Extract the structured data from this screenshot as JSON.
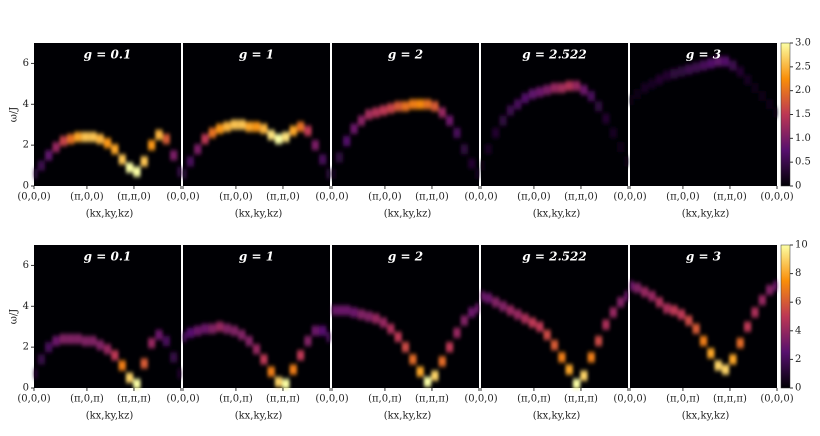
{
  "chart_data": [
    {
      "type": "spectral-heatmap",
      "ylabel": "ω/J",
      "xlabel": "(kx,ky,kz)",
      "k": [
        0,
        0.05,
        0.1,
        0.15,
        0.2,
        0.25,
        0.3,
        0.35,
        0.4,
        0.45,
        0.5,
        0.55,
        0.6,
        0.65,
        0.7,
        0.75,
        0.8,
        0.85,
        0.9,
        0.95,
        1
      ],
      "xlim": [
        0,
        1
      ],
      "xticks": [
        {
          "value": 0,
          "label": "(0,0,0)"
        },
        {
          "value": 0.36,
          "label": "(π,0,0)"
        },
        {
          "value": 0.68,
          "label": "(π,π,0)"
        },
        {
          "value": 1,
          "label": "(0,0,0)"
        }
      ],
      "ylim": [
        0,
        7
      ],
      "yticks": [
        0,
        2,
        4,
        6
      ],
      "colorbar": {
        "lim": [
          0,
          3
        ],
        "ticks": [
          0,
          0.5,
          {
            "value": 1,
            "label": "1.0"
          },
          1.5,
          {
            "value": 2,
            "label": "2.0"
          },
          2.5,
          {
            "value": 3,
            "label": "3.0"
          }
        ]
      },
      "panels": [
        {
          "title": "g = 0.1",
          "omega": [
            0.6,
            1.0,
            1.5,
            1.9,
            2.2,
            2.3,
            2.4,
            2.4,
            2.4,
            2.3,
            2.1,
            1.8,
            1.3,
            0.9,
            0.7,
            1.2,
            2.0,
            2.5,
            2.3,
            1.5,
            0.7
          ],
          "intensity": [
            0.4,
            0.5,
            0.8,
            1.2,
            1.6,
            2.0,
            2.4,
            2.6,
            2.6,
            2.5,
            2.3,
            2.4,
            2.6,
            3.0,
            3.0,
            2.6,
            2.3,
            2.5,
            1.8,
            1.0,
            0.5
          ]
        },
        {
          "title": "g = 1",
          "omega": [
            0.6,
            1.2,
            1.8,
            2.3,
            2.6,
            2.8,
            2.9,
            3.0,
            3.0,
            2.9,
            2.9,
            2.8,
            2.5,
            2.3,
            2.4,
            2.7,
            2.9,
            2.7,
            2.0,
            1.3,
            0.6
          ],
          "intensity": [
            0.4,
            0.6,
            1.0,
            1.5,
            2.0,
            2.3,
            2.5,
            2.6,
            2.6,
            2.4,
            2.3,
            2.5,
            2.8,
            3.0,
            2.8,
            2.4,
            2.0,
            1.5,
            1.0,
            0.6,
            0.4
          ]
        },
        {
          "title": "g = 2",
          "omega": [
            0.6,
            1.4,
            2.2,
            2.8,
            3.2,
            3.5,
            3.6,
            3.7,
            3.8,
            3.9,
            3.9,
            4.0,
            4.0,
            4.0,
            3.9,
            3.6,
            3.2,
            2.6,
            1.8,
            1.1,
            0.6
          ],
          "intensity": [
            0.2,
            0.4,
            0.7,
            0.9,
            1.1,
            1.3,
            1.4,
            1.5,
            1.6,
            1.8,
            2.0,
            2.1,
            2.2,
            2.0,
            1.8,
            1.2,
            0.9,
            0.6,
            0.4,
            0.3,
            0.2
          ]
        },
        {
          "title": "g = 2.522",
          "omega": [
            1.0,
            1.8,
            2.6,
            3.2,
            3.7,
            4.0,
            4.3,
            4.5,
            4.6,
            4.7,
            4.8,
            4.8,
            4.9,
            4.9,
            4.7,
            4.4,
            3.9,
            3.3,
            2.6,
            1.9,
            1.2
          ],
          "intensity": [
            0.1,
            0.2,
            0.3,
            0.4,
            0.5,
            0.6,
            0.7,
            0.8,
            0.9,
            1.0,
            1.2,
            1.3,
            1.4,
            1.2,
            0.9,
            0.6,
            0.4,
            0.3,
            0.2,
            0.1,
            0.1
          ]
        },
        {
          "title": "g = 3",
          "omega": [
            4.2,
            4.5,
            4.8,
            5.0,
            5.2,
            5.4,
            5.5,
            5.6,
            5.7,
            5.8,
            5.9,
            6.0,
            6.1,
            6.1,
            5.9,
            5.6,
            5.2,
            4.8,
            4.4,
            4.0,
            3.6
          ],
          "intensity": [
            0.1,
            0.1,
            0.2,
            0.2,
            0.3,
            0.3,
            0.4,
            0.4,
            0.5,
            0.5,
            0.6,
            0.7,
            0.8,
            0.7,
            0.5,
            0.3,
            0.2,
            0.1,
            0.1,
            0.1,
            0.1
          ]
        }
      ]
    },
    {
      "type": "spectral-heatmap",
      "ylabel": "ω/J",
      "xlabel": "(kx,ky,kz)",
      "k": [
        0,
        0.05,
        0.1,
        0.15,
        0.2,
        0.25,
        0.3,
        0.35,
        0.4,
        0.45,
        0.5,
        0.55,
        0.6,
        0.65,
        0.7,
        0.75,
        0.8,
        0.85,
        0.9,
        0.95,
        1
      ],
      "xlim": [
        0,
        1
      ],
      "xticks": [
        {
          "value": 0,
          "label": "(0,0,0)"
        },
        {
          "value": 0.36,
          "label": "(π,0,π)"
        },
        {
          "value": 0.68,
          "label": "(π,π,π)"
        },
        {
          "value": 1,
          "label": "(0,0,0)"
        }
      ],
      "ylim": [
        0,
        7
      ],
      "yticks": [
        0,
        2,
        4,
        6
      ],
      "colorbar": {
        "lim": [
          0,
          10
        ],
        "ticks": [
          0,
          2,
          4,
          6,
          8,
          10
        ]
      },
      "panels": [
        {
          "title": "g = 0.1",
          "omega": [
            0.7,
            1.4,
            2.0,
            2.3,
            2.4,
            2.4,
            2.4,
            2.3,
            2.3,
            2.1,
            1.9,
            1.6,
            1.1,
            0.5,
            0.2,
            1.2,
            2.2,
            2.6,
            2.3,
            1.5,
            0.7
          ],
          "intensity": [
            1,
            1.5,
            2,
            3,
            3.5,
            3.5,
            3.5,
            3.5,
            3.5,
            3.5,
            4,
            5,
            7,
            9,
            10,
            6,
            4,
            3,
            2,
            1.5,
            1
          ]
        },
        {
          "title": "g = 1",
          "omega": [
            2.5,
            2.7,
            2.8,
            2.9,
            2.9,
            3.0,
            2.9,
            2.8,
            2.6,
            2.3,
            1.9,
            1.4,
            0.8,
            0.3,
            0.2,
            0.9,
            1.6,
            2.3,
            2.8,
            2.8,
            2.5
          ],
          "intensity": [
            2,
            2.5,
            3,
            3,
            3.5,
            4,
            3.5,
            3.5,
            3.5,
            3.5,
            4,
            5,
            7,
            9,
            10,
            7,
            5,
            3.5,
            3,
            2.5,
            2
          ]
        },
        {
          "title": "g = 2",
          "omega": [
            3.8,
            3.8,
            3.8,
            3.7,
            3.6,
            3.5,
            3.4,
            3.2,
            2.9,
            2.5,
            2.0,
            1.4,
            0.8,
            0.3,
            0.6,
            1.3,
            2.0,
            2.7,
            3.3,
            3.7,
            3.9
          ],
          "intensity": [
            3,
            3,
            3,
            3,
            3.5,
            3.5,
            4,
            4,
            4.5,
            5,
            5.5,
            6.5,
            8,
            10,
            9,
            6.5,
            5,
            4,
            3.5,
            3,
            3
          ]
        },
        {
          "title": "g = 2.522",
          "omega": [
            4.5,
            4.4,
            4.2,
            4.0,
            3.8,
            3.6,
            3.4,
            3.2,
            3.0,
            2.6,
            2.1,
            1.5,
            0.9,
            0.2,
            0.6,
            1.5,
            2.3,
            3.1,
            3.7,
            4.2,
            4.5
          ],
          "intensity": [
            3,
            3,
            3.5,
            3.5,
            4,
            4,
            4.5,
            5,
            5,
            5.5,
            6,
            7,
            8,
            10,
            9,
            7,
            5.5,
            4.5,
            4,
            3.5,
            3
          ]
        },
        {
          "title": "g = 3",
          "omega": [
            5.0,
            4.9,
            4.7,
            4.5,
            4.2,
            3.9,
            3.8,
            3.6,
            3.3,
            2.9,
            2.3,
            1.7,
            1.1,
            0.9,
            1.4,
            2.2,
            3.0,
            3.7,
            4.3,
            4.8,
            5.0
          ],
          "intensity": [
            3,
            3.5,
            4,
            4,
            4.5,
            4.5,
            5,
            5,
            5.5,
            6,
            7,
            8,
            9,
            9,
            8,
            6.5,
            5,
            4.5,
            4,
            3.5,
            3
          ]
        }
      ]
    }
  ]
}
